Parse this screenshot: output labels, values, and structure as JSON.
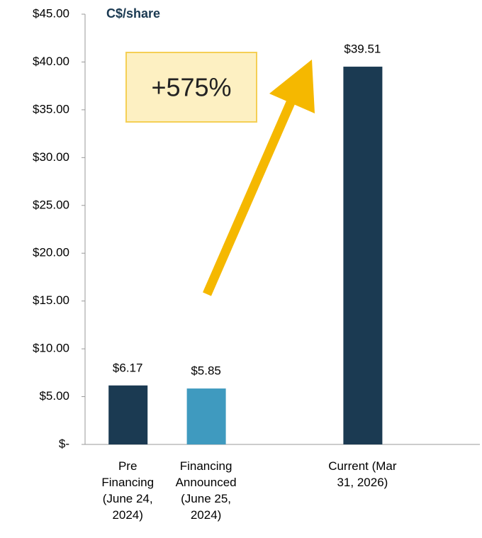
{
  "chart_data": {
    "type": "bar",
    "unit_label": "C$/share",
    "annotation": "+575%",
    "categories": [
      "Pre Financing (June 24, 2024)",
      "Financing Announced (June 25, 2024)",
      null,
      "Current (Mar 31, 2026)",
      null
    ],
    "values": [
      6.17,
      5.85,
      null,
      39.51,
      null
    ],
    "value_labels": [
      "$6.17",
      "$5.85",
      null,
      "$39.51",
      null
    ],
    "colors": [
      "#1b3a52",
      "#3f9abf",
      null,
      "#1b3a52",
      null
    ],
    "ylim": [
      0,
      45
    ],
    "yticks": [
      {
        "value": 0,
        "label": "$-"
      },
      {
        "value": 5,
        "label": "$5.00"
      },
      {
        "value": 10,
        "label": "$10.00"
      },
      {
        "value": 15,
        "label": "$15.00"
      },
      {
        "value": 20,
        "label": "$20.00"
      },
      {
        "value": 25,
        "label": "$25.00"
      },
      {
        "value": 30,
        "label": "$30.00"
      },
      {
        "value": 35,
        "label": "$35.00"
      },
      {
        "value": 40,
        "label": "$40.00"
      },
      {
        "value": 45,
        "label": "$45.00"
      }
    ],
    "grid": false
  }
}
